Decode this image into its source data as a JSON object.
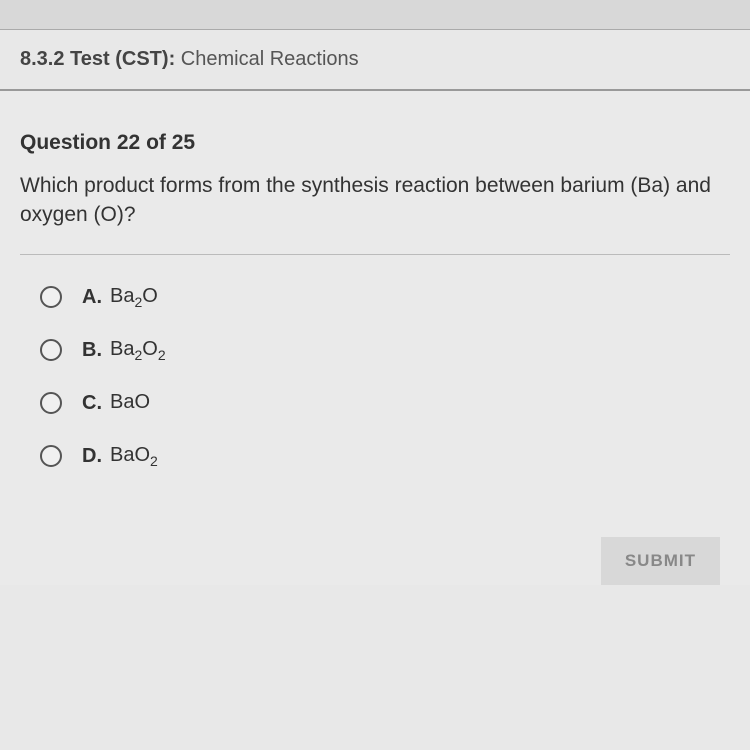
{
  "header": {
    "section_number": "8.3.2",
    "label": "Test (CST):",
    "subject": "Chemical Reactions"
  },
  "question": {
    "counter_prefix": "Question",
    "current": 22,
    "total": 25,
    "counter_separator": "of",
    "text": "Which product forms from the synthesis reaction between barium (Ba) and oxygen (O)?"
  },
  "options": [
    {
      "letter": "A.",
      "base1": "Ba",
      "sub1": "2",
      "base2": "O",
      "sub2": ""
    },
    {
      "letter": "B.",
      "base1": "Ba",
      "sub1": "2",
      "base2": "O",
      "sub2": "2"
    },
    {
      "letter": "C.",
      "base1": "Ba",
      "sub1": "",
      "base2": "O",
      "sub2": ""
    },
    {
      "letter": "D.",
      "base1": "Ba",
      "sub1": "",
      "base2": "O",
      "sub2": "2"
    }
  ],
  "submit_label": "SUBMIT"
}
